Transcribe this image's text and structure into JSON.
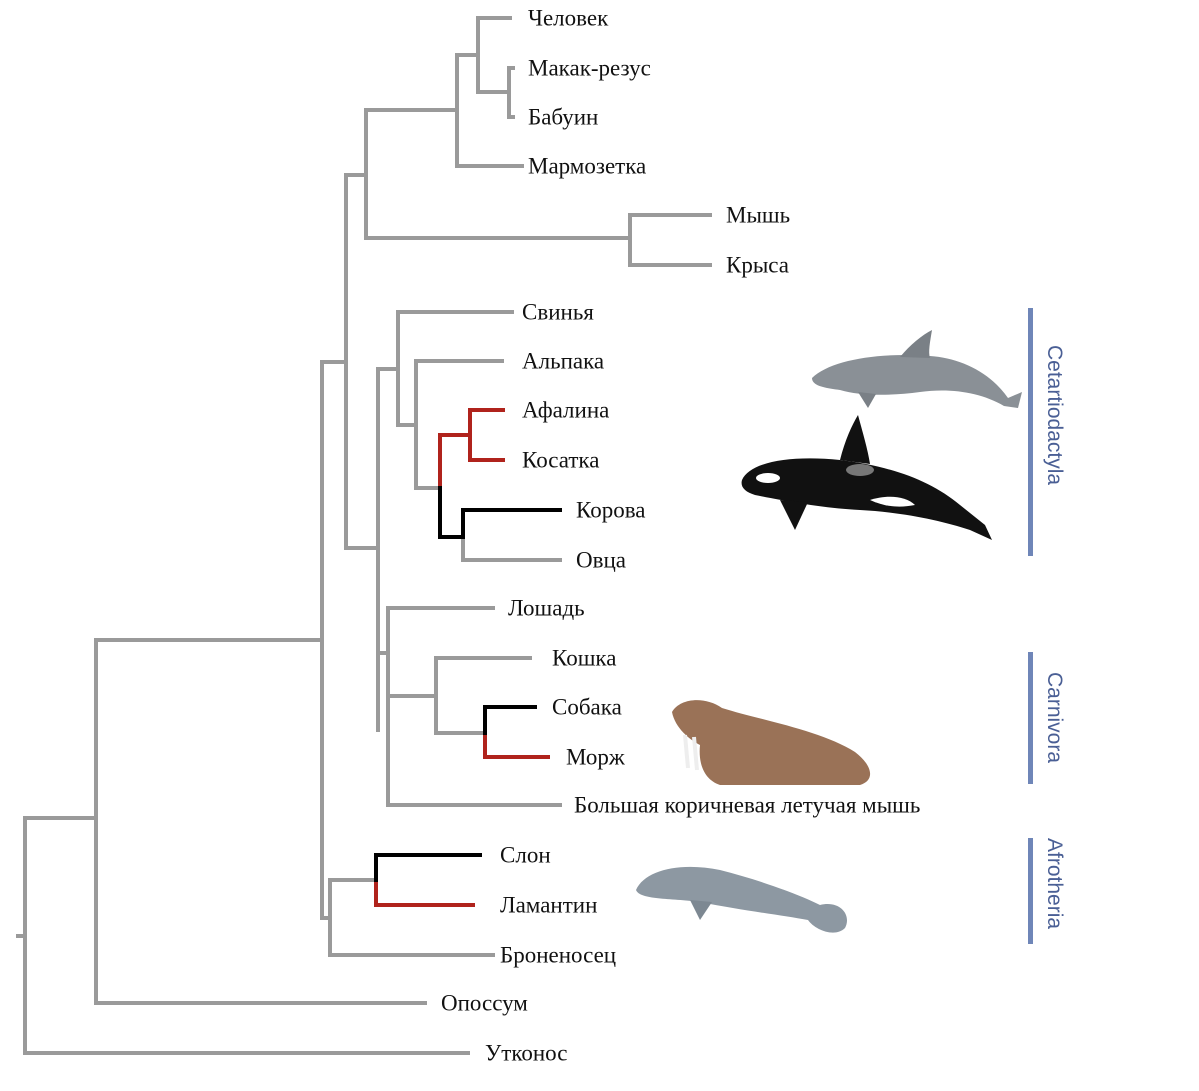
{
  "taxa": {
    "human": "Человек",
    "macaque": "Макак-резус",
    "baboon": "Бабуин",
    "marmoset": "Мармозетка",
    "mouse": "Мышь",
    "rat": "Крыса",
    "pig": "Свинья",
    "alpaca": "Альпака",
    "dolphin": "Афалина",
    "orca": "Косатка",
    "cow": "Корова",
    "sheep": "Овца",
    "horse": "Лошадь",
    "cat": "Кошка",
    "dog": "Собака",
    "walrus": "Морж",
    "bat": "Большая коричневая летучая мышь",
    "elephant": "Слон",
    "manatee": "Ламантин",
    "armadillo": "Броненосец",
    "opossum": "Опоссум",
    "platypus": "Утконос"
  },
  "clades": {
    "cetartiodactyla": "Cetartiodactyla",
    "carnivora": "Carnivora",
    "afrotheria": "Afrotheria"
  },
  "colors": {
    "branch": "#9a9a9a",
    "marine": "#b0231c",
    "terrestrial_relative": "#000000",
    "clade_bar": "#6f86b8"
  }
}
